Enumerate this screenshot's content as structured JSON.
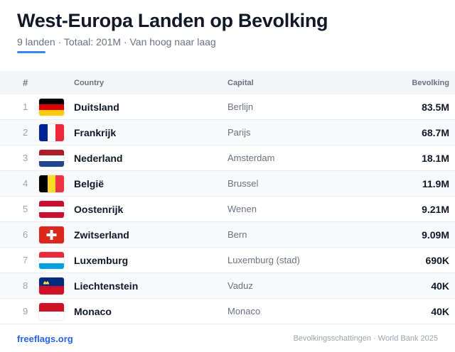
{
  "header": {
    "title": "West-Europa Landen op Bevolking",
    "subtitle": "9 landen · Totaal: 201M · Van hoog naar laag"
  },
  "table": {
    "columns": {
      "num": "#",
      "country": "Country",
      "capital": "Capital",
      "population": "Bevolking"
    },
    "rows": [
      {
        "rank": "1",
        "flag": "germany-flag-icon",
        "country": "Duitsland",
        "capital": "Berlijn",
        "population": "83.5M"
      },
      {
        "rank": "2",
        "flag": "france-flag-icon",
        "country": "Frankrijk",
        "capital": "Parijs",
        "population": "68.7M"
      },
      {
        "rank": "3",
        "flag": "netherlands-flag-icon",
        "country": "Nederland",
        "capital": "Amsterdam",
        "population": "18.1M"
      },
      {
        "rank": "4",
        "flag": "belgium-flag-icon",
        "country": "België",
        "capital": "Brussel",
        "population": "11.9M"
      },
      {
        "rank": "5",
        "flag": "austria-flag-icon",
        "country": "Oostenrijk",
        "capital": "Wenen",
        "population": "9.21M"
      },
      {
        "rank": "6",
        "flag": "switzerland-flag-icon",
        "country": "Zwitserland",
        "capital": "Bern",
        "population": "9.09M"
      },
      {
        "rank": "7",
        "flag": "luxembourg-flag-icon",
        "country": "Luxemburg",
        "capital": "Luxemburg (stad)",
        "population": "690K"
      },
      {
        "rank": "8",
        "flag": "liechtenstein-flag-icon",
        "country": "Liechtenstein",
        "capital": "Vaduz",
        "population": "40K"
      },
      {
        "rank": "9",
        "flag": "monaco-flag-icon",
        "country": "Monaco",
        "capital": "Monaco",
        "population": "40K"
      }
    ]
  },
  "footer": {
    "link": "freeflags.org",
    "source": "Bevolkingsschattingen · World Bank 2025"
  },
  "colors": {
    "accent": "#3b82f6",
    "link": "#2563eb"
  }
}
